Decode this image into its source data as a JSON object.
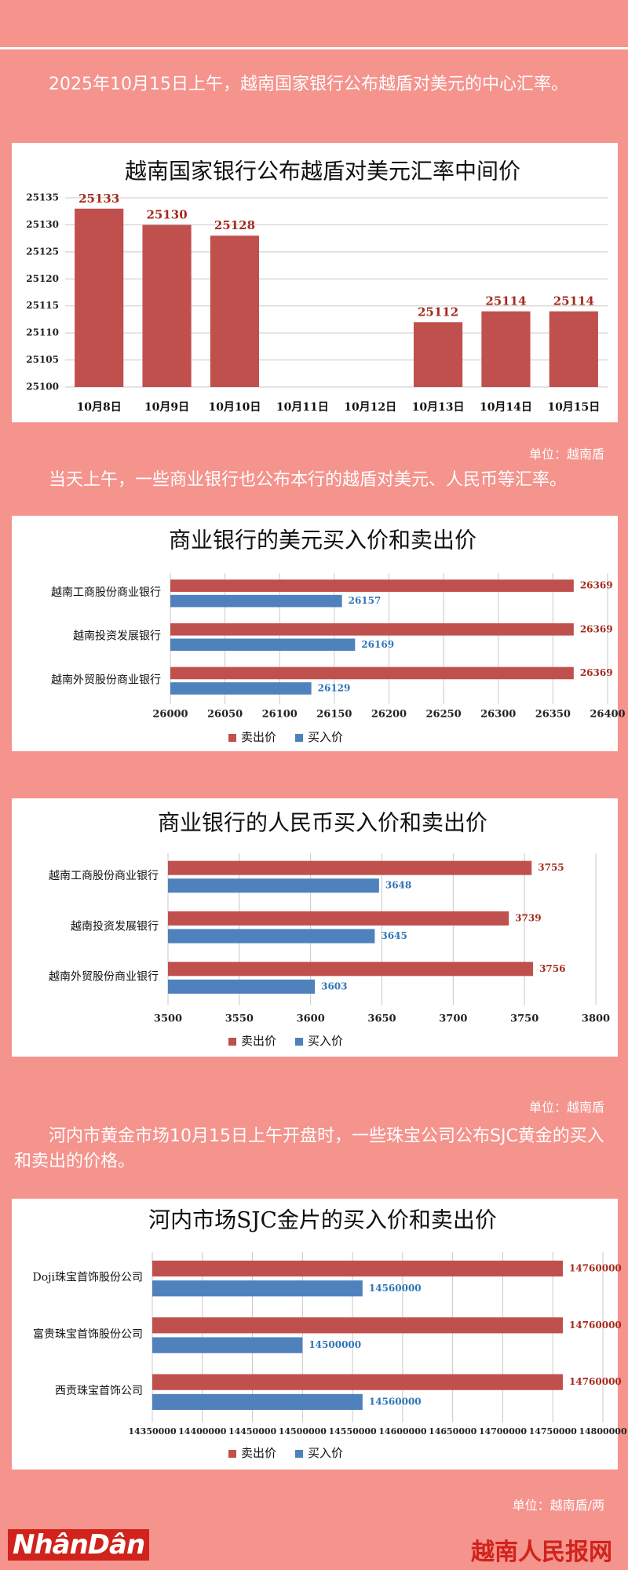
{
  "texts": {
    "paragraph_1": "2025年10月15日上午，越南国家银行公布越盾对美元的中心汇率。",
    "unit_1": "单位：越南盾",
    "paragraph_2": "当天上午，一些商业银行也公布本行的越盾对美元、人民币等汇率。",
    "unit_2": "单位：越南盾",
    "paragraph_3": "河内市黄金市场10月15日上午开盘时，一些珠宝公司公布SJC黄金的买入和卖出的价格。",
    "unit_3": "单位：越南盾/两",
    "logo": "NhânDân",
    "site": "越南人民报网"
  },
  "chart_data": [
    {
      "type": "bar",
      "horizontal": false,
      "title": "越南国家银行公布越盾对美元汇率中间价",
      "categories": [
        "10月8日",
        "10月9日",
        "10月10日",
        "10月11日",
        "10月12日",
        "10月13日",
        "10月14日",
        "10月15日"
      ],
      "values": [
        25133,
        25130,
        25128,
        null,
        null,
        25112,
        25114,
        25114
      ],
      "color": "#c0504d",
      "ylim": [
        25100,
        25135
      ],
      "yticks": [
        25100,
        25105,
        25110,
        25115,
        25120,
        25125,
        25130,
        25135
      ],
      "grid": true
    },
    {
      "type": "bar",
      "horizontal": true,
      "title": "商业银行的美元买入价和卖出价",
      "categories": [
        "越南工商股份商业银行",
        "越南投资发展银行",
        "越南外贸股份商业银行"
      ],
      "series": [
        {
          "name": "卖出价",
          "color": "#c0504d",
          "values": [
            26369,
            26369,
            26369
          ]
        },
        {
          "name": "买入价",
          "color": "#4f81bd",
          "values": [
            26157,
            26169,
            26129
          ]
        }
      ],
      "xlim": [
        26000,
        26400
      ],
      "xticks": [
        26000,
        26050,
        26100,
        26150,
        26200,
        26250,
        26300,
        26350,
        26400
      ],
      "grid": true,
      "legend": "bottom"
    },
    {
      "type": "bar",
      "horizontal": true,
      "title": "商业银行的人民币买入价和卖出价",
      "categories": [
        "越南工商股份商业银行",
        "越南投资发展银行",
        "越南外贸股份商业银行"
      ],
      "series": [
        {
          "name": "卖出价",
          "color": "#c0504d",
          "values": [
            3755,
            3739,
            3756
          ]
        },
        {
          "name": "买入价",
          "color": "#4f81bd",
          "values": [
            3648,
            3645,
            3603
          ]
        }
      ],
      "xlim": [
        3500,
        3800
      ],
      "xticks": [
        3500,
        3550,
        3600,
        3650,
        3700,
        3750,
        3800
      ],
      "grid": true,
      "legend": "bottom"
    },
    {
      "type": "bar",
      "horizontal": true,
      "title": "河内市场SJC金片的买入价和卖出价",
      "categories": [
        "Doji珠宝首饰股份公司",
        "富贵珠宝首饰股份公司",
        "西贡珠宝首饰公司"
      ],
      "series": [
        {
          "name": "卖出价",
          "color": "#c0504d",
          "values": [
            14760000,
            14760000,
            14760000
          ]
        },
        {
          "name": "买入价",
          "color": "#4f81bd",
          "values": [
            14560000,
            14500000,
            14560000
          ]
        }
      ],
      "xlim": [
        14350000,
        14800000
      ],
      "xticks": [
        14350000,
        14400000,
        14450000,
        14500000,
        14550000,
        14600000,
        14650000,
        14700000,
        14750000,
        14800000
      ],
      "grid": true,
      "legend": "bottom"
    }
  ]
}
